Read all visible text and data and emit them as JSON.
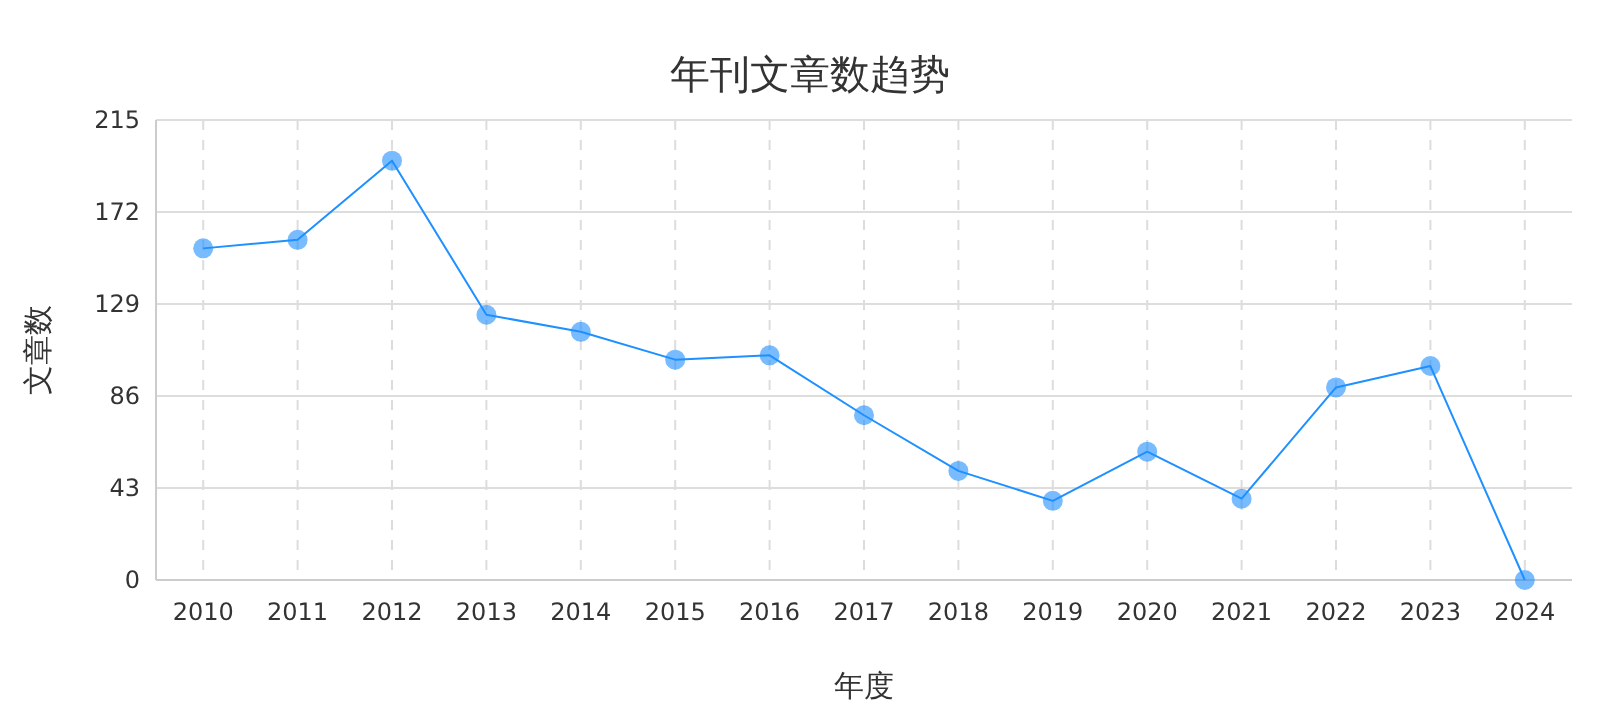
{
  "chart_data": {
    "type": "line",
    "title": "年刊文章数趋势",
    "xlabel": "年度",
    "ylabel": "文章数",
    "categories": [
      "2010",
      "2011",
      "2012",
      "2013",
      "2014",
      "2015",
      "2016",
      "2017",
      "2018",
      "2019",
      "2020",
      "2021",
      "2022",
      "2023",
      "2024"
    ],
    "series": [
      {
        "color": "#1e90ff",
        "values": [
          155,
          159,
          196,
          124,
          116,
          103,
          105,
          77,
          51,
          37,
          60,
          38,
          90,
          100,
          0
        ]
      }
    ],
    "ylim": [
      0,
      215
    ],
    "yticks": [
      0,
      43,
      86,
      129,
      172,
      215
    ],
    "grid": true,
    "marker": "circle",
    "line_style": "solid"
  }
}
